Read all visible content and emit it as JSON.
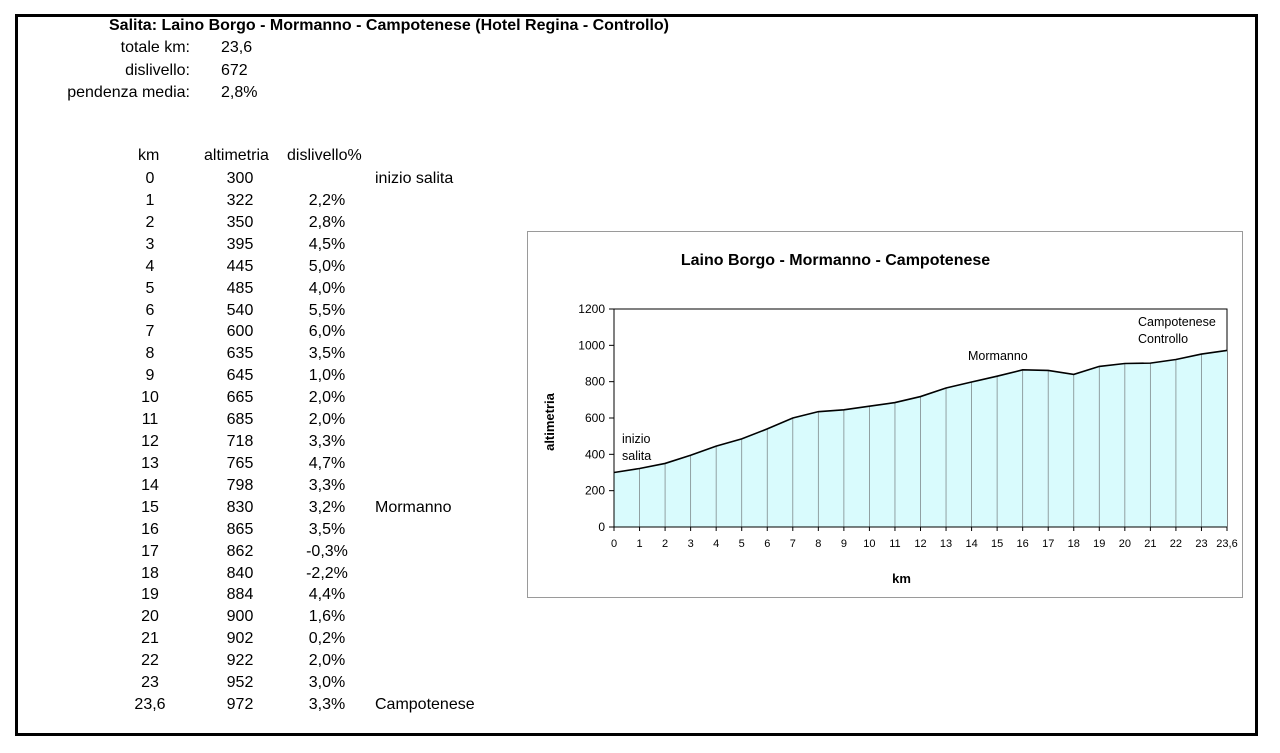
{
  "header": {
    "title": "Salita: Laino Borgo - Mormanno - Campotenese (Hotel Regina - Controllo)",
    "summary": [
      {
        "label": "totale km:",
        "value": "23,6"
      },
      {
        "label": "dislivello:",
        "value": "672"
      },
      {
        "label": "pendenza media:",
        "value": "2,8%"
      }
    ]
  },
  "table": {
    "headers": [
      "km",
      "altimetria",
      "dislivello%"
    ],
    "rows": [
      {
        "km": "0",
        "alt": "300",
        "pct": "",
        "note": "inizio salita"
      },
      {
        "km": "1",
        "alt": "322",
        "pct": "2,2%",
        "note": ""
      },
      {
        "km": "2",
        "alt": "350",
        "pct": "2,8%",
        "note": ""
      },
      {
        "km": "3",
        "alt": "395",
        "pct": "4,5%",
        "note": ""
      },
      {
        "km": "4",
        "alt": "445",
        "pct": "5,0%",
        "note": ""
      },
      {
        "km": "5",
        "alt": "485",
        "pct": "4,0%",
        "note": ""
      },
      {
        "km": "6",
        "alt": "540",
        "pct": "5,5%",
        "note": ""
      },
      {
        "km": "7",
        "alt": "600",
        "pct": "6,0%",
        "note": ""
      },
      {
        "km": "8",
        "alt": "635",
        "pct": "3,5%",
        "note": ""
      },
      {
        "km": "9",
        "alt": "645",
        "pct": "1,0%",
        "note": ""
      },
      {
        "km": "10",
        "alt": "665",
        "pct": "2,0%",
        "note": ""
      },
      {
        "km": "11",
        "alt": "685",
        "pct": "2,0%",
        "note": ""
      },
      {
        "km": "12",
        "alt": "718",
        "pct": "3,3%",
        "note": ""
      },
      {
        "km": "13",
        "alt": "765",
        "pct": "4,7%",
        "note": ""
      },
      {
        "km": "14",
        "alt": "798",
        "pct": "3,3%",
        "note": ""
      },
      {
        "km": "15",
        "alt": "830",
        "pct": "3,2%",
        "note": "Mormanno"
      },
      {
        "km": "16",
        "alt": "865",
        "pct": "3,5%",
        "note": ""
      },
      {
        "km": "17",
        "alt": "862",
        "pct": "-0,3%",
        "note": ""
      },
      {
        "km": "18",
        "alt": "840",
        "pct": "-2,2%",
        "note": ""
      },
      {
        "km": "19",
        "alt": "884",
        "pct": "4,4%",
        "note": ""
      },
      {
        "km": "20",
        "alt": "900",
        "pct": "1,6%",
        "note": ""
      },
      {
        "km": "21",
        "alt": "902",
        "pct": "0,2%",
        "note": ""
      },
      {
        "km": "22",
        "alt": "922",
        "pct": "2,0%",
        "note": ""
      },
      {
        "km": "23",
        "alt": "952",
        "pct": "3,0%",
        "note": ""
      },
      {
        "km": "23,6",
        "alt": "972",
        "pct": "3,3%",
        "note": "Campotenese"
      }
    ]
  },
  "chart_data": {
    "type": "area",
    "title": "Laino Borgo - Mormanno - Campotenese",
    "xlabel": "km",
    "ylabel": "altimetria",
    "categories": [
      "0",
      "1",
      "2",
      "3",
      "4",
      "5",
      "6",
      "7",
      "8",
      "9",
      "10",
      "11",
      "12",
      "13",
      "14",
      "15",
      "16",
      "17",
      "18",
      "19",
      "20",
      "21",
      "22",
      "23",
      "23,6"
    ],
    "series": [
      {
        "values": [
          300,
          322,
          350,
          395,
          445,
          485,
          540,
          600,
          635,
          645,
          665,
          685,
          718,
          765,
          798,
          830,
          865,
          862,
          840,
          884,
          900,
          902,
          922,
          952,
          972
        ]
      }
    ],
    "ylim": [
      0,
      1200
    ],
    "yticks": [
      0,
      200,
      400,
      600,
      800,
      1000,
      1200
    ],
    "annotations": [
      {
        "text": "inizio",
        "line2": "salita",
        "category_index": 0
      },
      {
        "text": "Mormanno",
        "line2": "",
        "category_index": 15
      },
      {
        "text": "Campotenese",
        "line2": "Controllo",
        "category_index": 24
      }
    ],
    "fill_color": "#d9fbfd",
    "line_color": "#000000",
    "grid": false,
    "legend": "none"
  }
}
